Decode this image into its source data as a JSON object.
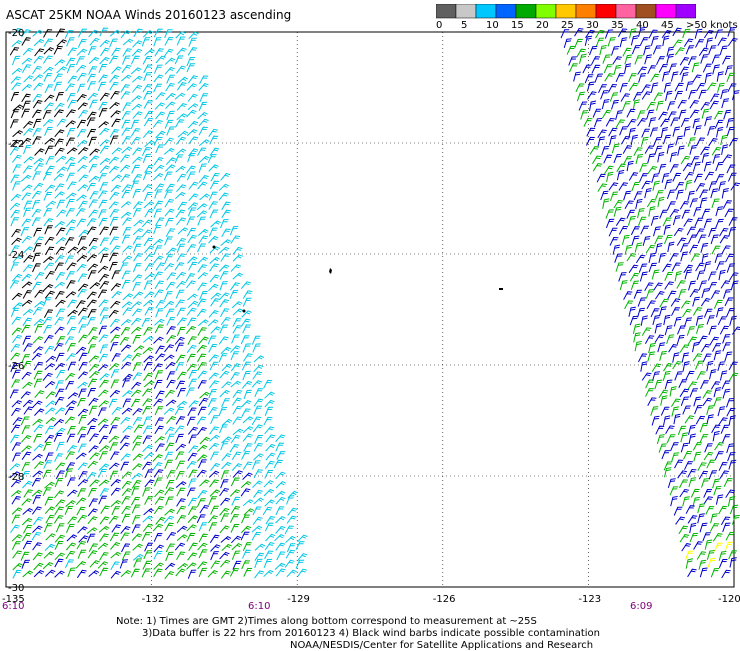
{
  "title": "ASCAT 25KM NOAA Winds 20160123 ascending",
  "colorbar": {
    "colors": [
      "#606060",
      "#c8c8c8",
      "#00c8ff",
      "#0064ff",
      "#00aa00",
      "#80ff00",
      "#ffc800",
      "#ff8000",
      "#ff0000",
      "#ff64a0",
      "#a05020",
      "#ff00ff",
      "#a000ff"
    ],
    "labels": [
      "0",
      "5",
      "10",
      "15",
      "20",
      "25",
      "30",
      "35",
      "40",
      "45",
      ">50 knots"
    ]
  },
  "axes": {
    "lat_labels": [
      "-20",
      "-22",
      "-24",
      "-26",
      "-28",
      "-30"
    ],
    "lon_labels": [
      "-135",
      "-132",
      "-129",
      "-126",
      "-123",
      "-120"
    ]
  },
  "time_labels": [
    "6:10",
    "6:10",
    "6:09"
  ],
  "notes": {
    "line1": "Note: 1) Times are GMT 2)Times along bottom correspond to measurement at ~25S",
    "line2": "3)Data buffer is 22 hrs from 20160123 4) Black wind barbs indicate possible contamination",
    "line3": "NOAA/NESDIS/Center for Satellite Applications and Research"
  },
  "swath_colors": {
    "black": "#000000",
    "cyan": "#00c8e6",
    "blue": "#0000cc",
    "green": "#00b400",
    "yellow": "#ffff00"
  }
}
